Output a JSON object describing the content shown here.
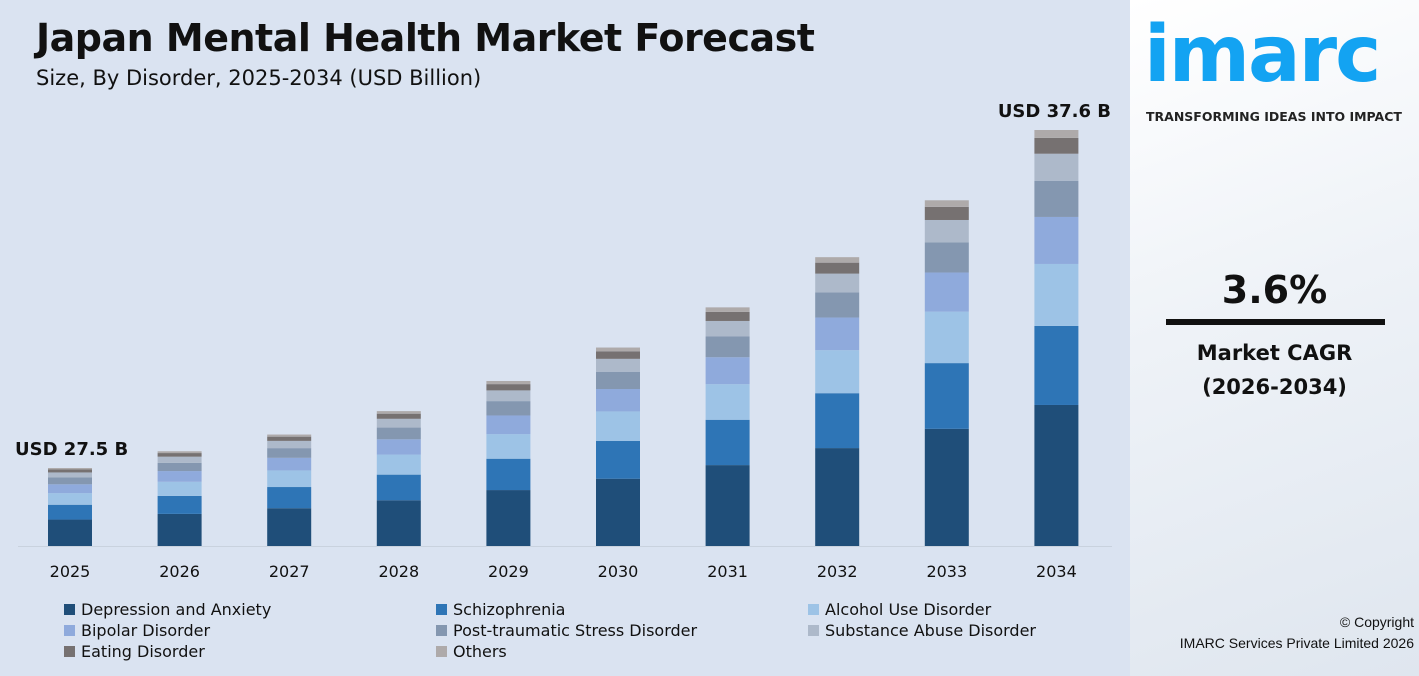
{
  "header": {
    "title": "Japan Mental Health Market Forecast",
    "subtitle": "Size, By Disorder, 2025-2034 (USD Billion)"
  },
  "chart_data": {
    "type": "bar",
    "stacked": true,
    "categories": [
      "2025",
      "2026",
      "2027",
      "2028",
      "2029",
      "2030",
      "2031",
      "2032",
      "2033",
      "2034"
    ],
    "totals": [
      27.5,
      28.0,
      28.5,
      29.2,
      30.1,
      31.1,
      32.3,
      33.8,
      35.5,
      37.6
    ],
    "ylim": [
      25.2,
      37.6
    ],
    "grid": false,
    "legend_placement": "bottom",
    "annotations": [
      {
        "category": "2025",
        "text": "USD 27.5 B"
      },
      {
        "category": "2034",
        "text": "USD 37.6 B"
      }
    ],
    "series": [
      {
        "name": "Depression and Anxiety",
        "color": "#1f4e79",
        "share": 0.339
      },
      {
        "name": "Schizophrenia",
        "color": "#2e75b6",
        "share": 0.19
      },
      {
        "name": "Alcohol Use Disorder",
        "color": "#9dc3e6",
        "share": 0.149
      },
      {
        "name": "Bipolar Disorder",
        "color": "#8faadc",
        "share": 0.113
      },
      {
        "name": "Post-traumatic Stress Disorder",
        "color": "#8497b0",
        "share": 0.087
      },
      {
        "name": "Substance Abuse Disorder",
        "color": "#adb9ca",
        "share": 0.065
      },
      {
        "name": "Eating Disorder",
        "color": "#767171",
        "share": 0.038
      },
      {
        "name": "Others",
        "color": "#aeaaaa",
        "share": 0.019
      }
    ]
  },
  "sidebar": {
    "logo": "imarc",
    "tagline": "TRANSFORMING IDEAS INTO IMPACT",
    "cagr_value": "3.6%",
    "cagr_label": "Market CAGR",
    "cagr_period": "(2026-2034)",
    "copyright": "© Copyright",
    "company": "IMARC Services Private Limited 2026",
    "brand_color": "#13a3f2"
  }
}
